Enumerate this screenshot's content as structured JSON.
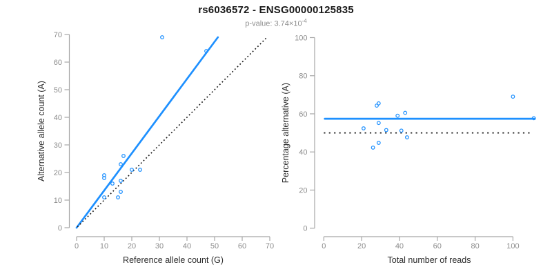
{
  "header": {
    "title": "rs6036572 - ENSG00000125835",
    "subtitle_prefix": "p-value: 3.74×10",
    "subtitle_exponent": "-4"
  },
  "colors": {
    "accent": "#1E90FF",
    "reference": "#1A1A1A",
    "axis_line": "#A6A6A6",
    "tick_label": "#8C8C8C",
    "axis_title": "#2B2B2B",
    "title": "#1A1A1A",
    "subtitle": "#8C8C8C"
  },
  "chart_data": [
    {
      "name": "allele-count-scatter",
      "type": "scatter",
      "xlabel": "Reference allele count (G)",
      "ylabel": "Alternative allele count (A)",
      "xlim": [
        0,
        70
      ],
      "ylim": [
        0,
        70
      ],
      "xticks": [
        0,
        10,
        20,
        30,
        40,
        50,
        60,
        70
      ],
      "yticks": [
        0,
        10,
        20,
        30,
        40,
        50,
        60,
        70
      ],
      "grid": false,
      "points": [
        [
          31,
          69
        ],
        [
          47,
          64
        ],
        [
          17,
          26
        ],
        [
          16,
          23
        ],
        [
          20,
          21
        ],
        [
          23,
          21
        ],
        [
          10,
          19
        ],
        [
          10,
          18
        ],
        [
          16,
          17
        ],
        [
          13,
          16
        ],
        [
          16,
          13
        ],
        [
          15,
          11
        ],
        [
          10,
          11
        ]
      ],
      "lines": [
        {
          "name": "fit-line",
          "style": "solid",
          "color": "#1E90FF",
          "x1": 0,
          "y1": 0,
          "x2": 51.2,
          "y2": 69
        },
        {
          "name": "identity-line",
          "style": "dotted",
          "color": "#1A1A1A",
          "x1": 0.3,
          "y1": 0.3,
          "x2": 68.8,
          "y2": 68.8
        }
      ]
    },
    {
      "name": "reads-vs-percentage-scatter",
      "type": "scatter",
      "xlabel": "Total number of reads",
      "ylabel": "Percentage alternative (A)",
      "xlim": [
        0,
        112
      ],
      "ylim": [
        0,
        100
      ],
      "xticks": [
        0,
        20,
        40,
        60,
        80,
        100
      ],
      "yticks": [
        0,
        20,
        40,
        60,
        80,
        100
      ],
      "grid": false,
      "points": [
        [
          100,
          69.0
        ],
        [
          111,
          57.7
        ],
        [
          43,
          60.5
        ],
        [
          39,
          59.0
        ],
        [
          41,
          51.2
        ],
        [
          44,
          47.7
        ],
        [
          29,
          65.5
        ],
        [
          28,
          64.3
        ],
        [
          33,
          51.5
        ],
        [
          29,
          55.2
        ],
        [
          29,
          44.8
        ],
        [
          26,
          42.3
        ],
        [
          21,
          52.4
        ]
      ],
      "lines": [
        {
          "name": "mean-percentage-line",
          "style": "solid",
          "color": "#1E90FF",
          "x1": 0.5,
          "y1": 57.4,
          "x2": 111.6,
          "y2": 57.4
        },
        {
          "name": "fifty-percent-line",
          "style": "dotted",
          "color": "#1A1A1A",
          "x1": 0,
          "y1": 50,
          "x2": 109,
          "y2": 50
        }
      ]
    }
  ]
}
